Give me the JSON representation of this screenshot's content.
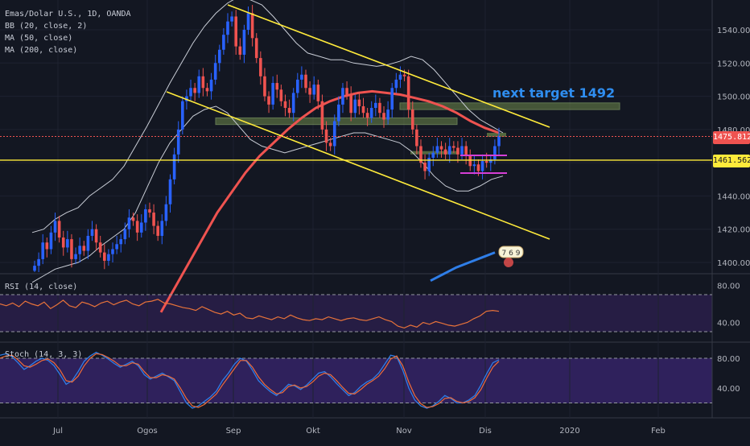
{
  "chart": {
    "symbol_line": "Emas/Dolar U.S., 1D, OANDA",
    "indicators": [
      "BB (20, close, 2)",
      "MA (50, close)",
      "MA (200, close)"
    ],
    "annotation": "next target 1492",
    "price_tags": [
      {
        "value": "1475.812",
        "color": "#ef5350"
      },
      {
        "value": "1461.562",
        "color": "#ffeb3b"
      }
    ],
    "badge_label": "7 6 9"
  },
  "chart_data": [
    {
      "type": "candlestick",
      "title": "Emas/Dolar U.S., 1D, OANDA",
      "yaxis": {
        "ticks": [
          1400,
          1420,
          1440,
          1460,
          1480,
          1500,
          1520,
          1540
        ],
        "tick_labels": [
          "1400.000",
          "1420.000",
          "1440.000",
          "1460.000",
          "1480.000",
          "1500.000",
          "1520.000",
          "1540.000"
        ],
        "range": [
          1394,
          1558
        ]
      },
      "xaxis": {
        "labels": [
          "Jul",
          "Ogos",
          "Sep",
          "Okt",
          "Nov",
          "Dis",
          "2020",
          "Feb"
        ]
      },
      "close_series": [
        1398,
        1402,
        1412,
        1408,
        1418,
        1425,
        1415,
        1409,
        1414,
        1402,
        1405,
        1410,
        1407,
        1416,
        1420,
        1412,
        1406,
        1401,
        1405,
        1408,
        1411,
        1414,
        1420,
        1427,
        1425,
        1418,
        1424,
        1432,
        1430,
        1422,
        1416,
        1425,
        1435,
        1450,
        1465,
        1480,
        1497,
        1500,
        1505,
        1502,
        1512,
        1505,
        1503,
        1510,
        1520,
        1528,
        1537,
        1545,
        1548,
        1530,
        1525,
        1540,
        1550,
        1535,
        1523,
        1512,
        1500,
        1495,
        1508,
        1504,
        1497,
        1493,
        1490,
        1502,
        1510,
        1513,
        1505,
        1501,
        1507,
        1497,
        1480,
        1472,
        1470,
        1485,
        1495,
        1505,
        1501,
        1490,
        1498,
        1494,
        1490,
        1487,
        1493,
        1496,
        1490,
        1486,
        1492,
        1505,
        1510,
        1513,
        1512,
        1492,
        1480,
        1470,
        1460,
        1455,
        1463,
        1466,
        1470,
        1468,
        1465,
        1470,
        1469,
        1465,
        1470,
        1464,
        1458,
        1459,
        1455,
        1461,
        1460,
        1462,
        1470,
        1476
      ],
      "bollinger_upper": [
        1418,
        1420,
        1426,
        1430,
        1433,
        1440,
        1445,
        1450,
        1458,
        1470,
        1482,
        1495,
        1508,
        1520,
        1532,
        1542,
        1550,
        1556,
        1560,
        1558,
        1555,
        1548,
        1540,
        1532,
        1526,
        1524,
        1522,
        1522,
        1520,
        1519,
        1518,
        1519,
        1521,
        1524,
        1522,
        1516,
        1508,
        1500,
        1492,
        1486,
        1482,
        1478
      ],
      "bollinger_lower": [
        1388,
        1392,
        1396,
        1398,
        1400,
        1404,
        1410,
        1415,
        1420,
        1430,
        1445,
        1460,
        1472,
        1480,
        1488,
        1492,
        1494,
        1490,
        1482,
        1474,
        1470,
        1468,
        1466,
        1468,
        1470,
        1472,
        1474,
        1476,
        1478,
        1478,
        1476,
        1474,
        1472,
        1467,
        1460,
        1452,
        1446,
        1443,
        1443,
        1446,
        1450,
        1452
      ],
      "ma50": [
        1370,
        1385,
        1400,
        1415,
        1430,
        1442,
        1454,
        1464,
        1472,
        1480,
        1487,
        1493,
        1497,
        1500,
        1502,
        1503,
        1502,
        1501,
        1499,
        1497,
        1494,
        1490,
        1485,
        1481,
        1478
      ],
      "ma200": [
        1389,
        1393,
        1397,
        1400,
        1403,
        1406
      ],
      "channel_upper": [
        [
          1501,
          "Aug"
        ],
        [
          1479,
          "mid-Dec"
        ]
      ],
      "channel_lower": [
        [
          1502,
          "Aug"
        ],
        [
          1415,
          "mid-Dec"
        ]
      ],
      "horizontal_lines": [
        1461.562,
        1475.812
      ],
      "zones": [
        {
          "label": "resistance",
          "low": 1492,
          "high": 1496
        },
        {
          "label": "support",
          "low": 1483,
          "high": 1487
        }
      ],
      "last_close": 1475.812,
      "target": 1492
    },
    {
      "type": "line",
      "title": "RSI (14, close)",
      "yaxis": {
        "tick_labels": [
          "80.00",
          "40.00"
        ],
        "range": [
          20,
          90
        ]
      },
      "bands": [
        70,
        30
      ],
      "values": [
        60,
        58,
        61,
        57,
        63,
        60,
        58,
        62,
        55,
        59,
        64,
        58,
        56,
        62,
        60,
        57,
        61,
        63,
        59,
        62,
        64,
        60,
        58,
        62,
        63,
        65,
        61,
        60,
        58,
        56,
        55,
        53,
        57,
        54,
        51,
        49,
        52,
        48,
        50,
        45,
        44,
        47,
        45,
        43,
        46,
        44,
        48,
        45,
        43,
        42,
        44,
        43,
        46,
        44,
        42,
        44,
        45,
        43,
        42,
        44,
        46,
        43,
        41,
        36,
        34,
        37,
        35,
        40,
        38,
        41,
        39,
        37,
        36,
        38,
        40,
        44,
        47,
        52,
        53,
        52
      ]
    },
    {
      "type": "line",
      "title": "Stoch (14, 3, 3)",
      "yaxis": {
        "tick_labels": [
          "80.00",
          "40.00"
        ],
        "range": [
          0,
          100
        ]
      },
      "bands": [
        80,
        20
      ],
      "series": [
        {
          "values": [
            84,
            86,
            82,
            74,
            65,
            70,
            76,
            80,
            77,
            70,
            58,
            45,
            50,
            62,
            76,
            83,
            88,
            84,
            79,
            73,
            68,
            72,
            76,
            70,
            58,
            52,
            56,
            60,
            55,
            50,
            35,
            20,
            13,
            16,
            22,
            28,
            36,
            50,
            60,
            72,
            80,
            76,
            64,
            50,
            42,
            35,
            30,
            37,
            45,
            43,
            38,
            44,
            52,
            60,
            62,
            55,
            46,
            38,
            30,
            34,
            42,
            48,
            52,
            60,
            72,
            84,
            82,
            64,
            40,
            24,
            16,
            13,
            16,
            22,
            30,
            26,
            20,
            20,
            24,
            30,
            44,
            60,
            74,
            78
          ]
        },
        {
          "values": [
            80,
            83,
            84,
            78,
            70,
            68,
            72,
            77,
            79,
            74,
            64,
            50,
            48,
            56,
            70,
            80,
            86,
            85,
            81,
            76,
            70,
            70,
            74,
            72,
            62,
            54,
            54,
            58,
            56,
            52,
            40,
            26,
            16,
            14,
            18,
            25,
            32,
            44,
            55,
            66,
            77,
            77,
            68,
            55,
            45,
            38,
            32,
            34,
            42,
            44,
            40,
            42,
            48,
            56,
            60,
            58,
            50,
            41,
            33,
            32,
            38,
            45,
            50,
            56,
            66,
            79,
            83,
            70,
            48,
            30,
            19,
            14,
            15,
            19,
            26,
            27,
            22,
            20,
            22,
            27,
            38,
            54,
            68,
            76
          ]
        }
      ]
    }
  ]
}
